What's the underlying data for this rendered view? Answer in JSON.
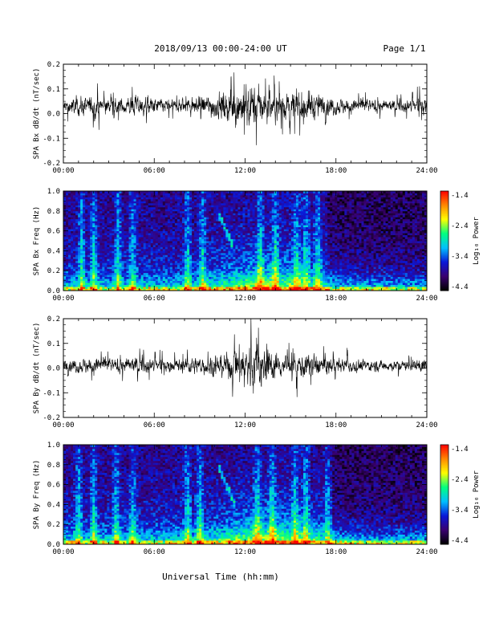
{
  "header": {
    "title": "2018/09/13  00:00-24:00 UT",
    "page": "Page 1/1"
  },
  "footer": {
    "xlabel": "Universal Time (hh:mm)"
  },
  "colors": {
    "trace": "#000000",
    "colormap": [
      "#000000",
      "#3a0070",
      "#0a18d8",
      "#00bfff",
      "#00ff80",
      "#ffff00",
      "#ff8800",
      "#ff0000"
    ]
  },
  "chart_data": [
    {
      "type": "line",
      "ylabel": "SPA Bx dB/dt (nT/sec)",
      "xticks": [
        "00:00",
        "06:00",
        "12:00",
        "18:00",
        "24:00"
      ],
      "yticks": [
        "-0.2",
        "-0.1",
        "0.0",
        "0.1",
        "0.2"
      ],
      "xlim": [
        0,
        24
      ],
      "ylim": [
        -0.2,
        0.2
      ],
      "baseline": 0.03,
      "envelope": {
        "x": [
          0,
          1,
          2,
          3,
          4,
          5,
          6,
          7,
          8,
          9,
          10,
          11,
          12,
          13,
          14,
          15,
          16,
          17,
          18,
          19,
          20,
          21,
          22,
          23,
          24
        ],
        "amplitude": [
          0.05,
          0.07,
          0.07,
          0.06,
          0.06,
          0.08,
          0.06,
          0.05,
          0.06,
          0.07,
          0.09,
          0.12,
          0.16,
          0.14,
          0.1,
          0.1,
          0.12,
          0.08,
          0.06,
          0.05,
          0.05,
          0.04,
          0.04,
          0.05,
          0.07
        ]
      }
    },
    {
      "type": "heatmap",
      "ylabel": "SPA Bx Freq (Hz)",
      "xticks": [
        "00:00",
        "06:00",
        "12:00",
        "18:00",
        "24:00"
      ],
      "yticks": [
        "0.0",
        "0.2",
        "0.4",
        "0.6",
        "0.8",
        "1.0"
      ],
      "xlim": [
        0,
        24
      ],
      "ylim": [
        0,
        1.0
      ],
      "colorbar": {
        "label": "Log₁₀ Power",
        "ticks": [
          "-1.4",
          "-2.4",
          "-3.4",
          "-4.4"
        ],
        "range": [
          -4.4,
          -1.4
        ]
      },
      "vertical_bursts_hours": [
        1.2,
        2.0,
        3.6,
        4.6,
        8.2,
        9.2,
        13.0,
        14.0,
        15.4,
        16.0,
        16.8
      ],
      "diagonal_feature": {
        "x": [
          10.2,
          11.2
        ],
        "y": [
          0.78,
          0.46
        ]
      }
    },
    {
      "type": "line",
      "ylabel": "SPA By dB/dt (nT/sec)",
      "xticks": [
        "00:00",
        "06:00",
        "12:00",
        "18:00",
        "24:00"
      ],
      "yticks": [
        "-0.2",
        "-0.1",
        "0.0",
        "0.1",
        "0.2"
      ],
      "xlim": [
        0,
        24
      ],
      "ylim": [
        -0.2,
        0.2
      ],
      "baseline": 0.01,
      "envelope": {
        "x": [
          0,
          1,
          2,
          3,
          4,
          5,
          6,
          7,
          8,
          9,
          10,
          11,
          12,
          13,
          14,
          15,
          16,
          17,
          18,
          19,
          20,
          21,
          22,
          23,
          24
        ],
        "amplitude": [
          0.04,
          0.05,
          0.06,
          0.05,
          0.05,
          0.06,
          0.05,
          0.04,
          0.05,
          0.06,
          0.07,
          0.1,
          0.17,
          0.16,
          0.09,
          0.08,
          0.09,
          0.07,
          0.05,
          0.05,
          0.04,
          0.04,
          0.04,
          0.04,
          0.06
        ]
      }
    },
    {
      "type": "heatmap",
      "ylabel": "SPA By Freq (Hz)",
      "xticks": [
        "00:00",
        "06:00",
        "12:00",
        "18:00",
        "24:00"
      ],
      "yticks": [
        "0.0",
        "0.2",
        "0.4",
        "0.6",
        "0.8",
        "1.0"
      ],
      "xlim": [
        0,
        24
      ],
      "ylim": [
        0,
        1.0
      ],
      "colorbar": {
        "label": "Log₁₀ Power",
        "ticks": [
          "-1.4",
          "-2.4",
          "-3.4",
          "-4.4"
        ],
        "range": [
          -4.4,
          -1.4
        ]
      },
      "vertical_bursts_hours": [
        1.0,
        2.0,
        3.5,
        4.6,
        8.2,
        9.0,
        12.8,
        13.8,
        15.3,
        16.0,
        17.5
      ],
      "diagonal_feature": {
        "x": [
          10.3,
          11.3
        ],
        "y": [
          0.76,
          0.42
        ]
      }
    }
  ]
}
